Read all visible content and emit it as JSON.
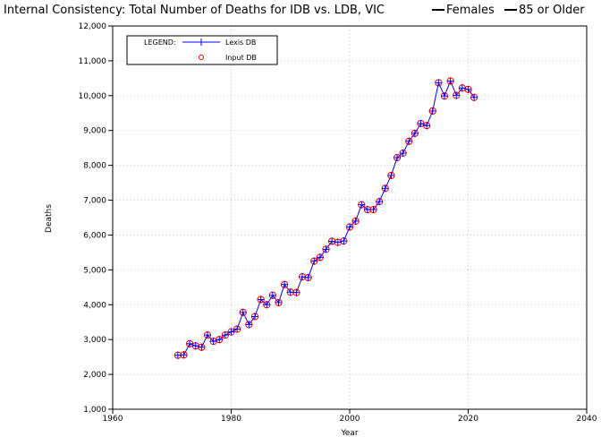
{
  "chart_data": {
    "type": "line",
    "title": "Internal Consistency: Total Number of Deaths for IDB vs. LDB, VIC",
    "title_tags": [
      "Females",
      "85 or Older"
    ],
    "xlabel": "Year",
    "ylabel": "Deaths",
    "xlim": [
      1960,
      2040
    ],
    "ylim": [
      1000,
      12000
    ],
    "x_ticks": [
      1960,
      1980,
      2000,
      2020,
      2040
    ],
    "y_ticks": [
      1000,
      2000,
      3000,
      4000,
      5000,
      6000,
      7000,
      8000,
      9000,
      10000,
      11000,
      12000
    ],
    "y_tick_labels": [
      "1,000",
      "2,000",
      "3,000",
      "4,000",
      "5,000",
      "6,000",
      "7,000",
      "8,000",
      "9,000",
      "10,000",
      "11,000",
      "12,000"
    ],
    "grid": true,
    "legend": {
      "title": "LEGEND:",
      "placement": "top-left",
      "entries": [
        "Lexis DB",
        "Input DB"
      ]
    },
    "x": [
      1971,
      1972,
      1973,
      1974,
      1975,
      1976,
      1977,
      1978,
      1979,
      1980,
      1981,
      1982,
      1983,
      1984,
      1985,
      1986,
      1987,
      1988,
      1989,
      1990,
      1991,
      1992,
      1993,
      1994,
      1995,
      1996,
      1997,
      1998,
      1999,
      2000,
      2001,
      2002,
      2003,
      2004,
      2005,
      2006,
      2007,
      2008,
      2009,
      2010,
      2011,
      2012,
      2013,
      2014,
      2015,
      2016,
      2017,
      2018,
      2019,
      2020,
      2021
    ],
    "series": [
      {
        "name": "Lexis DB",
        "color": "#0000ff",
        "marker": "plus",
        "values": [
          2550,
          2560,
          2880,
          2820,
          2780,
          3130,
          2950,
          3000,
          3130,
          3220,
          3300,
          3780,
          3430,
          3660,
          4150,
          4000,
          4270,
          4060,
          4580,
          4360,
          4350,
          4800,
          4780,
          5250,
          5360,
          5590,
          5820,
          5790,
          5830,
          6230,
          6400,
          6870,
          6730,
          6730,
          6960,
          7340,
          7710,
          8220,
          8350,
          8690,
          8920,
          9200,
          9140,
          9560,
          10370,
          9990,
          10420,
          10010,
          10220,
          10180,
          9950
        ]
      },
      {
        "name": "Input DB",
        "color": "#ff0000",
        "marker": "circle",
        "values": [
          2550,
          2560,
          2880,
          2820,
          2780,
          3130,
          2950,
          3000,
          3130,
          3220,
          3300,
          3780,
          3430,
          3660,
          4150,
          4000,
          4270,
          4060,
          4580,
          4360,
          4350,
          4800,
          4780,
          5250,
          5360,
          5590,
          5820,
          5790,
          5830,
          6230,
          6400,
          6870,
          6730,
          6730,
          6960,
          7340,
          7710,
          8220,
          8350,
          8690,
          8920,
          9200,
          9140,
          9560,
          10370,
          9990,
          10420,
          10010,
          10220,
          10180,
          9950
        ]
      }
    ]
  }
}
